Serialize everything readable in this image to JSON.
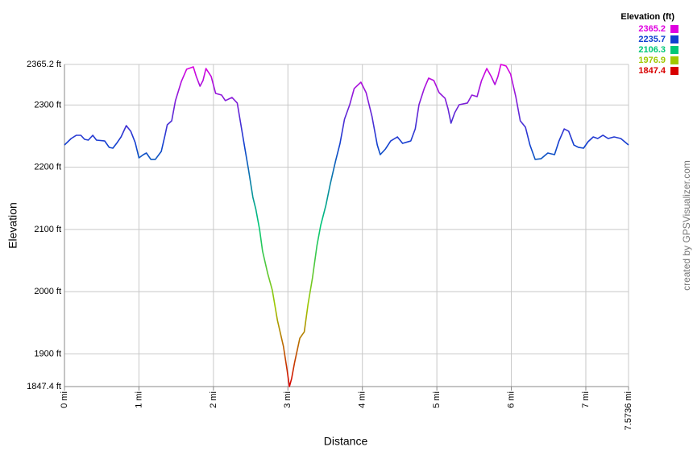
{
  "chart_data": {
    "type": "line",
    "x_label": "Distance",
    "y_label": "Elevation",
    "credit": "created by GPSVisualizer.com",
    "legend": {
      "title": "Elevation (ft)",
      "stops": [
        {
          "value": 2365.2,
          "color": "#e000e0"
        },
        {
          "value": 2235.7,
          "color": "#1040d0"
        },
        {
          "value": 2106.3,
          "color": "#00c878"
        },
        {
          "value": 1976.9,
          "color": "#a0c800"
        },
        {
          "value": 1847.4,
          "color": "#d80000"
        }
      ]
    },
    "grid": true,
    "xlim": [
      0,
      7.5736
    ],
    "ylim": [
      1847.4,
      2365.2
    ],
    "xticks": [
      {
        "value": 0,
        "label": "0 mi"
      },
      {
        "value": 1,
        "label": "1 mi"
      },
      {
        "value": 2,
        "label": "2 mi"
      },
      {
        "value": 3,
        "label": "3 mi"
      },
      {
        "value": 4,
        "label": "4 mi"
      },
      {
        "value": 5,
        "label": "5 mi"
      },
      {
        "value": 6,
        "label": "6 mi"
      },
      {
        "value": 7,
        "label": "7 mi"
      },
      {
        "value": 7.5736,
        "label": "7.5736 mi"
      }
    ],
    "yticks": [
      {
        "value": 1847.4,
        "label": "1847.4 ft"
      },
      {
        "value": 1900,
        "label": "1900 ft"
      },
      {
        "value": 2000,
        "label": "2000 ft"
      },
      {
        "value": 2100,
        "label": "2100 ft"
      },
      {
        "value": 2200,
        "label": "2200 ft"
      },
      {
        "value": 2300,
        "label": "2300 ft"
      },
      {
        "value": 2365.2,
        "label": "2365.2 ft"
      }
    ],
    "x": [
      0,
      0.09,
      0.16,
      0.22,
      0.27,
      0.32,
      0.38,
      0.43,
      0.54,
      0.6,
      0.65,
      0.7,
      0.76,
      0.83,
      0.89,
      0.95,
      1.0,
      1.06,
      1.1,
      1.16,
      1.22,
      1.3,
      1.35,
      1.38,
      1.44,
      1.49,
      1.57,
      1.64,
      1.73,
      1.77,
      1.82,
      1.86,
      1.9,
      1.97,
      2.03,
      2.11,
      2.16,
      2.25,
      2.32,
      2.36,
      2.42,
      2.47,
      2.53,
      2.57,
      2.62,
      2.66,
      2.73,
      2.79,
      2.86,
      2.94,
      2.99,
      3.02,
      3.05,
      3.09,
      3.16,
      3.22,
      3.27,
      3.33,
      3.39,
      3.44,
      3.51,
      3.57,
      3.64,
      3.7,
      3.76,
      3.83,
      3.89,
      3.98,
      4.05,
      4.13,
      4.2,
      4.24,
      4.31,
      4.38,
      4.47,
      4.54,
      4.65,
      4.71,
      4.76,
      4.83,
      4.89,
      4.96,
      5.03,
      5.11,
      5.15,
      5.19,
      5.24,
      5.3,
      5.41,
      5.47,
      5.54,
      5.6,
      5.67,
      5.73,
      5.78,
      5.82,
      5.86,
      5.93,
      5.99,
      6.06,
      6.12,
      6.19,
      6.25,
      6.32,
      6.4,
      6.49,
      6.58,
      6.64,
      6.71,
      6.77,
      6.84,
      6.9,
      6.97,
      7.03,
      7.1,
      7.16,
      7.23,
      7.3,
      7.38,
      7.47,
      7.5736
    ],
    "values": [
      2235.7,
      2246.1,
      2251.3,
      2251.3,
      2244.8,
      2243.5,
      2251.3,
      2243.5,
      2242.2,
      2231.9,
      2230.6,
      2238.3,
      2248.7,
      2266.8,
      2257.8,
      2239.6,
      2215.0,
      2220.2,
      2222.8,
      2212.5,
      2212.5,
      2225.4,
      2251.3,
      2268.1,
      2274.6,
      2307.0,
      2338.0,
      2357.4,
      2361.3,
      2345.8,
      2330.2,
      2339.3,
      2358.7,
      2345.8,
      2318.6,
      2316.0,
      2307.0,
      2312.1,
      2303.1,
      2274.6,
      2231.9,
      2196.9,
      2151.6,
      2132.2,
      2099.8,
      2064.9,
      2028.6,
      2002.7,
      1953.6,
      1912.1,
      1873.3,
      1847.4,
      1860.3,
      1886.2,
      1925.1,
      1935.4,
      1979.4,
      2022.2,
      2074.0,
      2106.3,
      2138.7,
      2173.6,
      2209.9,
      2238.3,
      2277.2,
      2300.5,
      2326.4,
      2336.7,
      2319.9,
      2281.1,
      2235.7,
      2220.2,
      2229.3,
      2242.2,
      2248.7,
      2238.3,
      2242.2,
      2261.6,
      2300.5,
      2326.4,
      2343.2,
      2339.3,
      2319.9,
      2310.8,
      2294.0,
      2270.7,
      2287.5,
      2300.5,
      2303.1,
      2316.0,
      2313.4,
      2339.3,
      2358.7,
      2345.8,
      2332.8,
      2345.8,
      2365.2,
      2362.6,
      2349.7,
      2313.4,
      2274.6,
      2264.2,
      2235.7,
      2212.5,
      2213.7,
      2222.8,
      2220.2,
      2242.2,
      2261.6,
      2257.8,
      2235.7,
      2231.9,
      2230.6,
      2240.9,
      2248.7,
      2246.1,
      2251.3,
      2246.1,
      2248.7,
      2246.1,
      2235.7
    ]
  }
}
